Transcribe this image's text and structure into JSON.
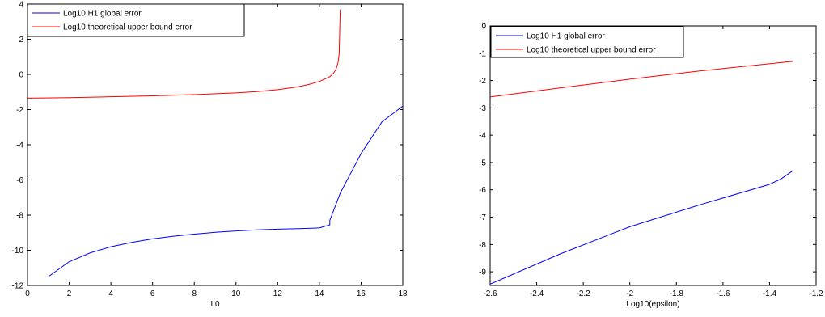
{
  "chart_data": [
    {
      "type": "line",
      "title": "",
      "xlabel": "L0",
      "ylabel": "",
      "xlim": [
        0,
        18
      ],
      "ylim": [
        -12,
        4
      ],
      "xticks": [
        0,
        2,
        4,
        6,
        8,
        10,
        12,
        14,
        16,
        18
      ],
      "yticks": [
        -12,
        -10,
        -8,
        -6,
        -4,
        -2,
        0,
        2,
        4
      ],
      "grid": false,
      "legend_position": "top-left",
      "series": [
        {
          "name": "Log10 H1 global error",
          "color": "#0000ff",
          "x": [
            1,
            2,
            3,
            4,
            5,
            6,
            7,
            8,
            9,
            10,
            11,
            12,
            13,
            14,
            14.5,
            14.5,
            15,
            16,
            17,
            18
          ],
          "y": [
            -11.5,
            -10.65,
            -10.15,
            -9.8,
            -9.55,
            -9.35,
            -9.2,
            -9.08,
            -8.98,
            -8.9,
            -8.84,
            -8.8,
            -8.77,
            -8.73,
            -8.55,
            -8.3,
            -6.75,
            -4.5,
            -2.7,
            -1.8
          ]
        },
        {
          "name": "Log10 theoretical upper bound error",
          "color": "#ff0000",
          "x": [
            0,
            2,
            4,
            6,
            8,
            10,
            11,
            12,
            13,
            13.5,
            14,
            14.5,
            14.7,
            14.8,
            14.9,
            14.95,
            15
          ],
          "y": [
            -1.35,
            -1.32,
            -1.27,
            -1.22,
            -1.15,
            -1.05,
            -0.98,
            -0.87,
            -0.7,
            -0.57,
            -0.4,
            -0.13,
            0.1,
            0.3,
            0.7,
            1.2,
            3.7
          ]
        }
      ]
    },
    {
      "type": "line",
      "title": "",
      "xlabel": "Log10(epsilon)",
      "ylabel": "",
      "xlim": [
        -2.6,
        -1.2
      ],
      "ylim": [
        -9.5,
        0
      ],
      "xticks": [
        -2.6,
        -2.4,
        -2.2,
        -2,
        -1.8,
        -1.6,
        -1.4,
        -1.2
      ],
      "yticks": [
        -9,
        -8,
        -7,
        -6,
        -5,
        -4,
        -3,
        -2,
        -1,
        0
      ],
      "grid": false,
      "legend_position": "top-left",
      "series": [
        {
          "name": "Log10 H1 global error",
          "color": "#0000ff",
          "x": [
            -2.6,
            -2.3,
            -2,
            -1.7,
            -1.4,
            -1.35,
            -1.3
          ],
          "y": [
            -9.45,
            -8.35,
            -7.35,
            -6.55,
            -5.8,
            -5.6,
            -5.3
          ]
        },
        {
          "name": "Log10 theoretical upper bound error",
          "color": "#ff0000",
          "x": [
            -2.6,
            -2.3,
            -2,
            -1.7,
            -1.3
          ],
          "y": [
            -2.6,
            -2.27,
            -1.95,
            -1.65,
            -1.3
          ]
        }
      ]
    }
  ]
}
